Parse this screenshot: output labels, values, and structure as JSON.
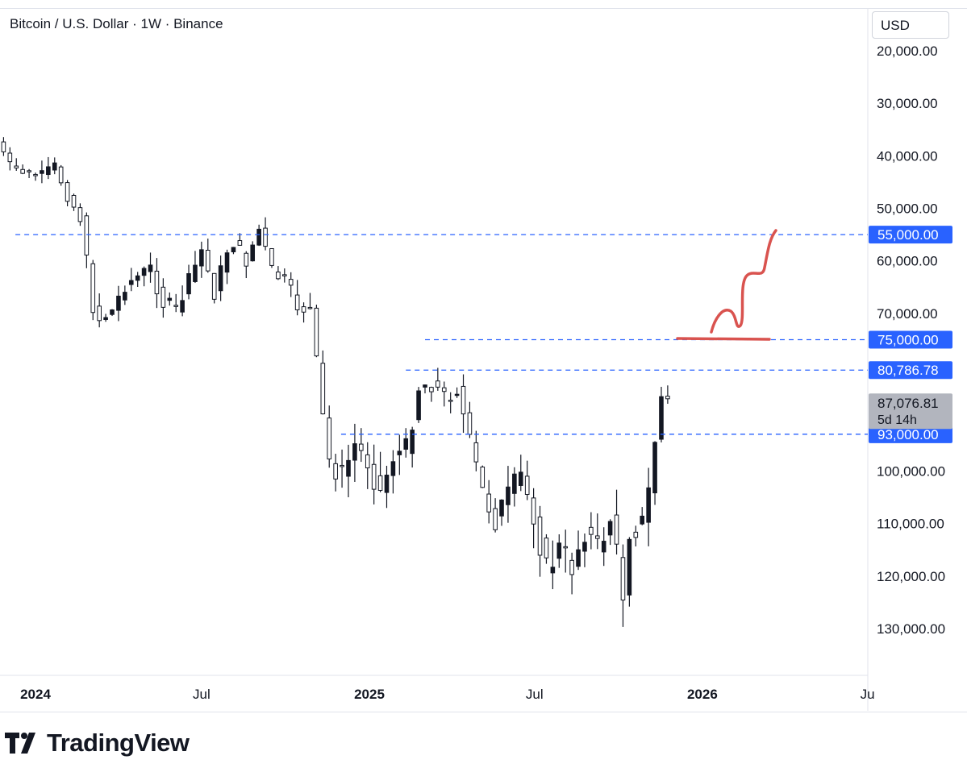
{
  "legend": "Bitcoin / U.S. Dollar · 1W · Binance",
  "currency_button": "USD",
  "brand": "TradingView",
  "colors": {
    "level_line": "#2962ff",
    "label_bg": "#2962ff",
    "price_bg": "#b2b5be",
    "sketch": "#d9534f",
    "candle_down": "#131722",
    "candle_up_fill": "#ffffff"
  },
  "chart_data": {
    "type": "candlestick",
    "axis_inverted": true,
    "ylim": [
      15000,
      140000
    ],
    "y_ticks": [
      {
        "value": 20000,
        "label": "20,000.00"
      },
      {
        "value": 30000,
        "label": "30,000.00"
      },
      {
        "value": 40000,
        "label": "40,000.00"
      },
      {
        "value": 50000,
        "label": "50,000.00"
      },
      {
        "value": 60000,
        "label": "60,000.00"
      },
      {
        "value": 70000,
        "label": "70,000.00"
      },
      {
        "value": 100000,
        "label": "100,000.00"
      },
      {
        "value": 110000,
        "label": "110,000.00"
      },
      {
        "value": 120000,
        "label": "120,000.00"
      },
      {
        "value": 130000,
        "label": "130,000.00"
      }
    ],
    "x_ticks": [
      {
        "date": "2024-01-01",
        "label": "2024",
        "bold": true
      },
      {
        "date": "2024-07-01",
        "label": "Jul",
        "bold": false
      },
      {
        "date": "2025-01-01",
        "label": "2025",
        "bold": true
      },
      {
        "date": "2025-07-01",
        "label": "Jul",
        "bold": false
      },
      {
        "date": "2026-01-01",
        "label": "2026",
        "bold": true
      },
      {
        "date": "2026-07-01",
        "label": "Ju",
        "bold": false
      }
    ],
    "xlim": [
      "2023-11-20",
      "2026-08-10"
    ],
    "levels": [
      {
        "value": 55000,
        "label": "55,000.00",
        "from": "2023-12-10"
      },
      {
        "value": 75000,
        "label": "75,000.00",
        "from": "2025-03-03"
      },
      {
        "value": 80786.78,
        "label": "80,786.78",
        "from": "2025-02-10"
      },
      {
        "value": 93000,
        "label": "93,000.00",
        "from": "2024-12-01"
      }
    ],
    "current_price": {
      "value": 87076.81,
      "label": "87,076.81",
      "countdown": "5d 14h"
    },
    "weekly_close_path": [
      [
        "2023-11-20",
        37500
      ],
      [
        "2023-12-04",
        42000
      ],
      [
        "2023-12-25",
        43500
      ],
      [
        "2024-01-08",
        43800
      ],
      [
        "2024-01-22",
        42000
      ],
      [
        "2024-02-05",
        47500
      ],
      [
        "2024-02-19",
        51800
      ],
      [
        "2024-03-04",
        68500
      ],
      [
        "2024-03-11",
        71000
      ],
      [
        "2024-03-25",
        69500
      ],
      [
        "2024-04-08",
        64500
      ],
      [
        "2024-04-22",
        63000
      ],
      [
        "2024-05-06",
        61500
      ],
      [
        "2024-05-20",
        68000
      ],
      [
        "2024-06-03",
        69500
      ],
      [
        "2024-06-17",
        64000
      ],
      [
        "2024-07-01",
        58000
      ],
      [
        "2024-07-15",
        66000
      ],
      [
        "2024-07-29",
        58000
      ],
      [
        "2024-08-05",
        56500
      ],
      [
        "2024-08-19",
        60000
      ],
      [
        "2024-09-02",
        54000
      ],
      [
        "2024-09-16",
        62000
      ],
      [
        "2024-09-30",
        64000
      ],
      [
        "2024-10-14",
        68500
      ],
      [
        "2024-10-28",
        69500
      ],
      [
        "2024-11-11",
        90000
      ],
      [
        "2024-11-18",
        98000
      ],
      [
        "2024-12-02",
        101000
      ],
      [
        "2024-12-16",
        95000
      ],
      [
        "2024-12-30",
        98000
      ],
      [
        "2025-01-13",
        104000
      ],
      [
        "2025-01-27",
        97000
      ],
      [
        "2025-02-10",
        96000
      ],
      [
        "2025-02-24",
        84000
      ],
      [
        "2025-03-10",
        83000
      ],
      [
        "2025-03-24",
        86000
      ],
      [
        "2025-04-07",
        84000
      ],
      [
        "2025-04-21",
        95000
      ],
      [
        "2025-05-05",
        104000
      ],
      [
        "2025-05-19",
        109000
      ],
      [
        "2025-06-02",
        105000
      ],
      [
        "2025-06-16",
        101000
      ],
      [
        "2025-06-30",
        108000
      ],
      [
        "2025-07-14",
        119000
      ],
      [
        "2025-07-28",
        115000
      ],
      [
        "2025-08-11",
        118000
      ],
      [
        "2025-08-25",
        111000
      ],
      [
        "2025-09-08",
        115000
      ],
      [
        "2025-09-22",
        109000
      ],
      [
        "2025-10-06",
        123000
      ],
      [
        "2025-10-13",
        111000
      ],
      [
        "2025-10-27",
        110000
      ],
      [
        "2025-11-03",
        104000
      ],
      [
        "2025-11-10",
        94000
      ],
      [
        "2025-11-17",
        86000
      ],
      [
        "2025-11-24",
        87076.81
      ]
    ]
  }
}
